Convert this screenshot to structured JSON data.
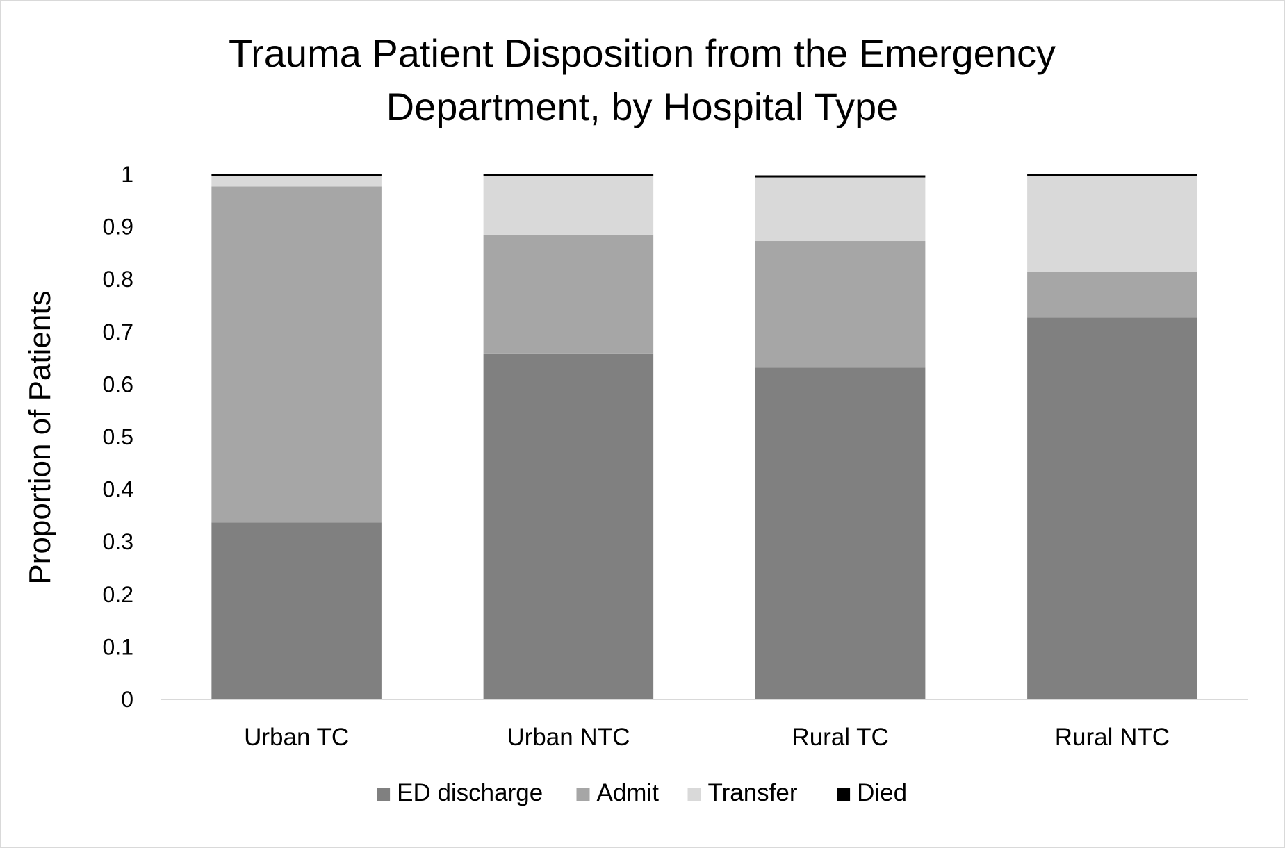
{
  "chart_data": {
    "type": "bar",
    "stacked": true,
    "title_lines": [
      "Trauma Patient Disposition from the Emergency",
      "Department, by Hospital Type"
    ],
    "xlabel": "",
    "ylabel": "Proportion of Patients",
    "ylim": [
      0,
      1
    ],
    "yticks": [
      "0",
      "0.1",
      "0.2",
      "0.3",
      "0.4",
      "0.5",
      "0.6",
      "0.7",
      "0.8",
      "0.9",
      "1"
    ],
    "categories": [
      "Urban TC",
      "Urban NTC",
      "Rural TC",
      "Rural NTC"
    ],
    "series": [
      {
        "name": "ED discharge",
        "color": "#808080",
        "values": [
          0.337,
          0.659,
          0.632,
          0.727
        ]
      },
      {
        "name": "Admit",
        "color": "#a6a6a6",
        "values": [
          0.64,
          0.226,
          0.241,
          0.087
        ]
      },
      {
        "name": "Transfer",
        "color": "#d9d9d9",
        "values": [
          0.02,
          0.112,
          0.121,
          0.183
        ]
      },
      {
        "name": "Died",
        "color": "#000000",
        "values": [
          0.003,
          0.003,
          0.004,
          0.003
        ]
      }
    ],
    "grid": false,
    "legend_position": "bottom"
  }
}
